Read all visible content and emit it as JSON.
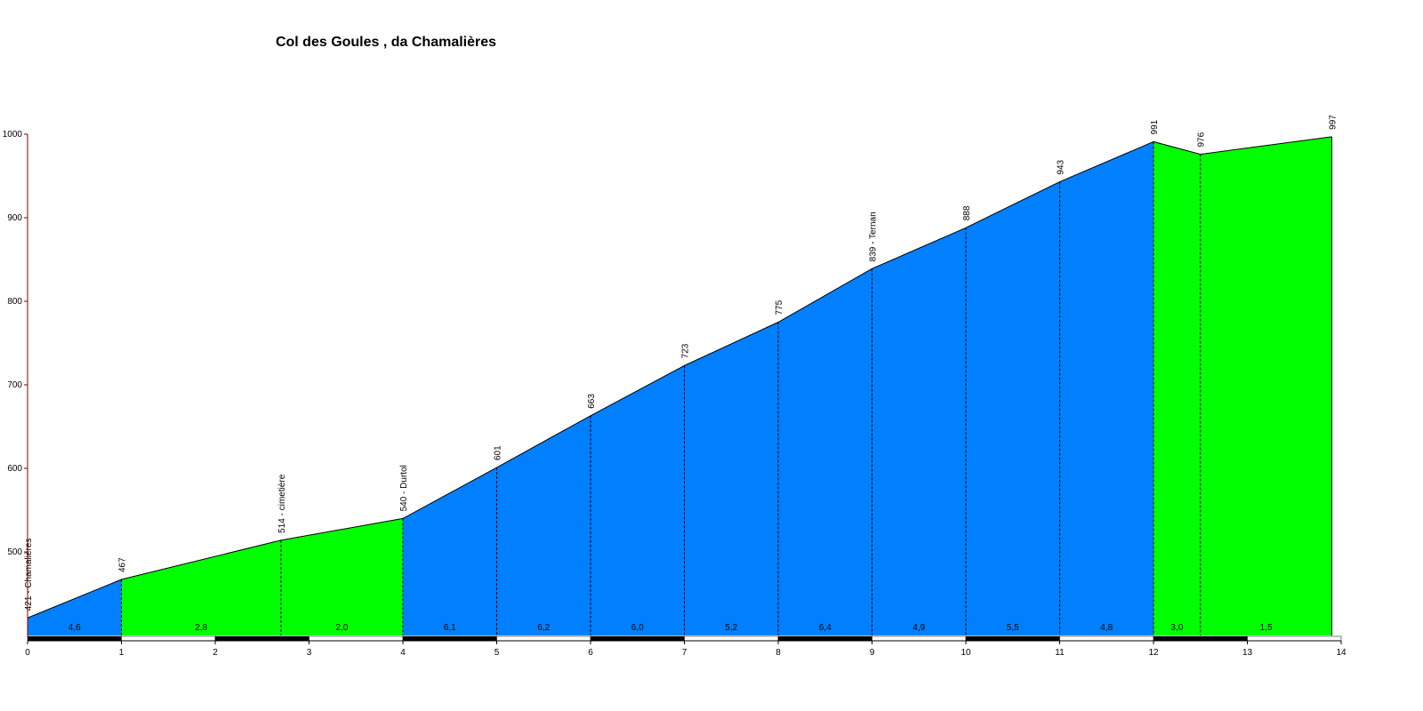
{
  "chart_data": {
    "type": "elevation-profile",
    "title": "Col des Goules , da Chamalières",
    "x": [
      0,
      1,
      2.7,
      4,
      5,
      6,
      7,
      8,
      9,
      10,
      11,
      12,
      12.5,
      13.9
    ],
    "values": [
      421,
      467,
      514,
      540,
      601,
      663,
      723,
      775,
      839,
      888,
      943,
      991,
      976,
      997
    ],
    "value_labels": [
      "421 - Chamalières",
      "467",
      "514 - cimetière",
      "540 - Durtol",
      "601",
      "663",
      "723",
      "775",
      "839 - Ternan",
      "888",
      "943",
      "991",
      "976",
      "997"
    ],
    "gradients": {
      "values": [
        4.6,
        2.8,
        2.0,
        6.1,
        6.2,
        6.0,
        5.2,
        6.4,
        4.9,
        5.5,
        4.8,
        3.0,
        1.5
      ],
      "value_labels": [
        "4,6",
        "2,8",
        "2,0",
        "6,1",
        "6,2",
        "6,0",
        "5,2",
        "6,4",
        "4,9",
        "5,5",
        "4,8",
        "3,0",
        "1,5"
      ],
      "colors": [
        "#0080ff",
        "#00ff00",
        "#00ff00",
        "#0080ff",
        "#0080ff",
        "#0080ff",
        "#0080ff",
        "#0080ff",
        "#0080ff",
        "#0080ff",
        "#0080ff",
        "#00ff00",
        "#00ff00"
      ]
    },
    "xlim": [
      0,
      14
    ],
    "xticks": [
      0,
      1,
      2,
      3,
      4,
      5,
      6,
      7,
      8,
      9,
      10,
      11,
      12,
      13,
      14
    ],
    "ylim": [
      400,
      1000
    ],
    "yticks": [
      500,
      600,
      700,
      800,
      900,
      1000
    ]
  }
}
